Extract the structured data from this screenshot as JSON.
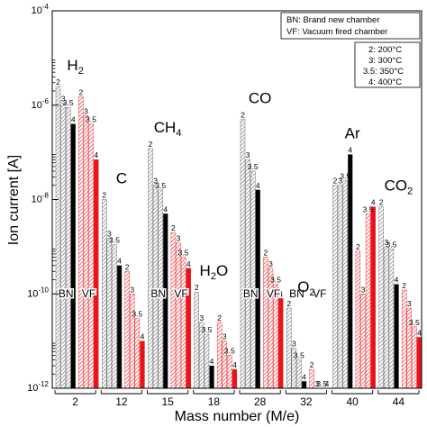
{
  "chart_data": {
    "type": "bar",
    "ylabel": "Ion current [A]",
    "xlabel": "Mass number (M/e)",
    "yscale": "log",
    "ylim": [
      1e-12,
      0.0001
    ],
    "y_ticks": [
      {
        "exp": "-12",
        "value": 1e-12
      },
      {
        "exp": "-10",
        "value": 1e-10
      },
      {
        "exp": "-8",
        "value": 1e-08
      },
      {
        "exp": "-6",
        "value": 1e-06
      },
      {
        "exp": "-4",
        "value": 0.0001
      }
    ],
    "legend": {
      "chambers": [
        "BN: Brand new chamber",
        "VF: Vacuum fired chamber"
      ],
      "temperatures": [
        "2: 200°C",
        "3: 300°C",
        "3.5: 350°C",
        "4: 400°C"
      ]
    },
    "colors": {
      "BN": "#000000",
      "VF": "#e8141b",
      "hatch_bn": "#7a7a7a",
      "hatch_vf": "#e8141b"
    },
    "temperature_codes": [
      "2",
      "3",
      "3.5",
      "4"
    ],
    "chamber_codes": [
      "BN",
      "VF"
    ],
    "groups": [
      {
        "mass": "2",
        "gas": {
          "base": "H",
          "sub": "2"
        },
        "bn_label": "BN",
        "vf_label": "VF",
        "BN": [
          2.5e-06,
          1.1e-06,
          9e-07,
          4e-07
        ],
        "VF": [
          1.5e-06,
          6e-07,
          4e-07,
          7e-08
        ]
      },
      {
        "mass": "12",
        "gas": {
          "base": "C",
          "sub": ""
        },
        "bn_label": "",
        "vf_label": "",
        "BN": [
          1e-08,
          1.5e-09,
          1.1e-09,
          4e-10
        ],
        "VF": [
          3e-10,
          1e-10,
          3e-11,
          1e-11
        ]
      },
      {
        "mass": "15",
        "gas": {
          "base": "CH",
          "sub": "4"
        },
        "bn_label": "BN",
        "vf_label": "VF",
        "BN": [
          1.2e-07,
          2e-08,
          1.6e-08,
          5e-09
        ],
        "VF": [
          2e-09,
          1.2e-09,
          6e-10,
          3.5e-10
        ]
      },
      {
        "mass": "18",
        "gas": {
          "base": "H",
          "sub": "2",
          "tail": "O"
        },
        "bn_label": "",
        "vf_label": "",
        "BN": [
          1.1e-10,
          2.5e-11,
          1.4e-11,
          3e-12
        ],
        "VF": [
          2.5e-11,
          1e-11,
          5e-12,
          2.5e-12
        ]
      },
      {
        "mass": "28",
        "gas": {
          "base": "CO",
          "sub": ""
        },
        "bn_label": "BN",
        "vf_label": "VF",
        "BN": [
          5e-07,
          7e-08,
          4e-08,
          1.6e-08
        ],
        "VF": [
          6e-10,
          3.5e-10,
          1.6e-10,
          8e-11
        ]
      },
      {
        "mass": "32",
        "gas": {
          "base": "O",
          "sub": "2"
        },
        "bn_label": "BN",
        "vf_label": "VF",
        "BN": [
          5e-11,
          7e-12,
          4e-12,
          1.4e-12
        ],
        "VF": [
          2.5e-12,
          1e-12,
          1e-12,
          1e-12
        ]
      },
      {
        "mass": "40",
        "gas": {
          "base": "Ar",
          "sub": ""
        },
        "bn_label": "",
        "vf_label": "",
        "BN": [
          2e-08,
          2e-08,
          2.5e-08,
          9e-08
        ],
        "VF": [
          8e-10,
          1e-10,
          5e-09,
          7e-09
        ]
      },
      {
        "mass": "44",
        "gas": {
          "base": "CO",
          "sub": "2"
        },
        "bn_label": "",
        "vf_label": "",
        "BN": [
          7e-09,
          1e-09,
          9e-10,
          1.6e-10
        ],
        "VF": [
          1.2e-10,
          5e-11,
          2e-11,
          1.2e-11
        ]
      }
    ]
  }
}
